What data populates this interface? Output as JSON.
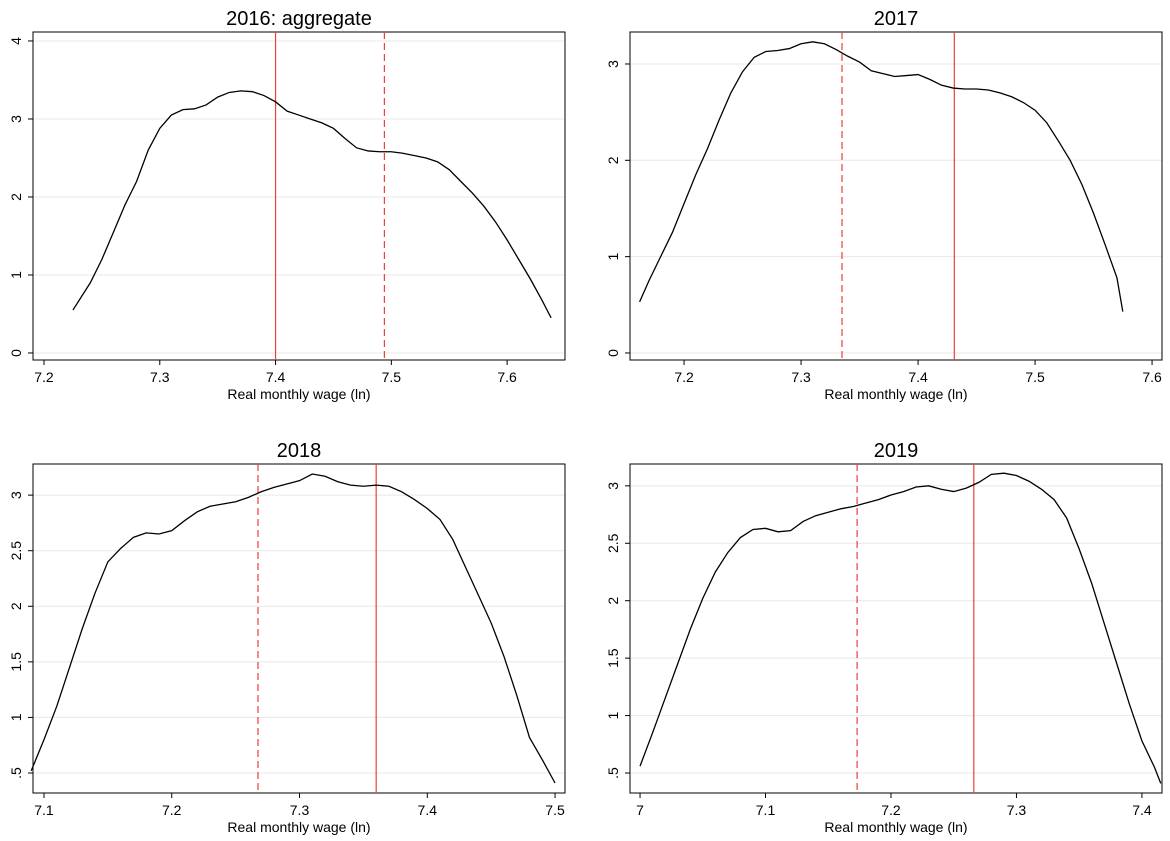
{
  "chart_data": [
    {
      "type": "line",
      "title": "2016: aggregate",
      "xlabel": "Real monthly wage (ln)",
      "color": "#000000",
      "grid": true,
      "vline_color": "#e8413c",
      "x": [
        7.225,
        7.24,
        7.25,
        7.26,
        7.27,
        7.28,
        7.29,
        7.3,
        7.31,
        7.32,
        7.33,
        7.34,
        7.35,
        7.36,
        7.37,
        7.38,
        7.39,
        7.4,
        7.41,
        7.42,
        7.43,
        7.44,
        7.45,
        7.46,
        7.47,
        7.48,
        7.49,
        7.5,
        7.51,
        7.52,
        7.53,
        7.54,
        7.55,
        7.56,
        7.57,
        7.58,
        7.59,
        7.6,
        7.61,
        7.62,
        7.63,
        7.638
      ],
      "values": [
        0.55,
        0.9,
        1.2,
        1.55,
        1.9,
        2.2,
        2.6,
        2.88,
        3.05,
        3.12,
        3.13,
        3.18,
        3.28,
        3.34,
        3.36,
        3.35,
        3.3,
        3.22,
        3.1,
        3.05,
        3.0,
        2.95,
        2.88,
        2.75,
        2.63,
        2.59,
        2.58,
        2.58,
        2.56,
        2.53,
        2.5,
        2.45,
        2.35,
        2.2,
        2.05,
        1.88,
        1.68,
        1.45,
        1.2,
        0.95,
        0.68,
        0.45
      ],
      "vlines": [
        {
          "x": 7.4,
          "style": "solid"
        },
        {
          "x": 7.494,
          "style": "dashed"
        }
      ],
      "xlim": [
        7.1905,
        7.65
      ],
      "ylim": [
        -0.09,
        4.115
      ],
      "xticks": [
        7.2,
        7.3,
        7.4,
        7.5,
        7.6
      ],
      "yticks": [
        0,
        1,
        2,
        3,
        4
      ]
    },
    {
      "type": "line",
      "title": "2017",
      "xlabel": "Real monthly wage (ln)",
      "color": "#000000",
      "grid": true,
      "vline_color": "#e8413c",
      "x": [
        7.162,
        7.17,
        7.18,
        7.19,
        7.2,
        7.21,
        7.22,
        7.23,
        7.24,
        7.25,
        7.26,
        7.27,
        7.28,
        7.29,
        7.3,
        7.31,
        7.32,
        7.33,
        7.34,
        7.35,
        7.36,
        7.37,
        7.38,
        7.39,
        7.4,
        7.41,
        7.42,
        7.43,
        7.44,
        7.45,
        7.46,
        7.47,
        7.48,
        7.49,
        7.5,
        7.51,
        7.52,
        7.53,
        7.54,
        7.55,
        7.56,
        7.57,
        7.575
      ],
      "values": [
        0.53,
        0.75,
        1.0,
        1.25,
        1.55,
        1.85,
        2.12,
        2.42,
        2.7,
        2.92,
        3.07,
        3.13,
        3.14,
        3.16,
        3.21,
        3.23,
        3.21,
        3.15,
        3.08,
        3.02,
        2.93,
        2.9,
        2.87,
        2.88,
        2.89,
        2.84,
        2.78,
        2.75,
        2.74,
        2.74,
        2.73,
        2.7,
        2.66,
        2.6,
        2.52,
        2.39,
        2.2,
        2.0,
        1.75,
        1.45,
        1.12,
        0.78,
        0.43
      ],
      "vlines": [
        {
          "x": 7.335,
          "style": "dashed"
        },
        {
          "x": 7.431,
          "style": "solid"
        }
      ],
      "xlim": [
        7.1538,
        7.6085
      ],
      "ylim": [
        -0.073,
        3.332
      ],
      "xticks": [
        7.2,
        7.3,
        7.4,
        7.5,
        7.6
      ],
      "yticks": [
        0,
        1,
        2,
        3
      ]
    },
    {
      "type": "line",
      "title": "2018",
      "xlabel": "Real monthly wage (ln)",
      "color": "#000000",
      "grid": true,
      "vline_color": "#e8413c",
      "x": [
        7.09,
        7.1,
        7.11,
        7.12,
        7.13,
        7.14,
        7.15,
        7.16,
        7.17,
        7.18,
        7.19,
        7.2,
        7.21,
        7.22,
        7.23,
        7.24,
        7.25,
        7.26,
        7.27,
        7.28,
        7.29,
        7.3,
        7.31,
        7.32,
        7.33,
        7.34,
        7.35,
        7.36,
        7.37,
        7.38,
        7.39,
        7.4,
        7.41,
        7.42,
        7.43,
        7.44,
        7.45,
        7.46,
        7.47,
        7.48,
        7.49,
        7.5
      ],
      "values": [
        0.52,
        0.8,
        1.1,
        1.45,
        1.8,
        2.12,
        2.4,
        2.52,
        2.62,
        2.66,
        2.65,
        2.68,
        2.77,
        2.85,
        2.9,
        2.92,
        2.94,
        2.98,
        3.03,
        3.07,
        3.1,
        3.13,
        3.19,
        3.17,
        3.12,
        3.09,
        3.08,
        3.09,
        3.08,
        3.03,
        2.96,
        2.88,
        2.78,
        2.6,
        2.35,
        2.1,
        1.85,
        1.55,
        1.2,
        0.82,
        0.62,
        0.41
      ],
      "vlines": [
        {
          "x": 7.2675,
          "style": "dashed"
        },
        {
          "x": 7.36,
          "style": "solid"
        }
      ],
      "xlim": [
        7.0914,
        7.5078
      ],
      "ylim": [
        0.32,
        3.28
      ],
      "xticks": [
        7.1,
        7.2,
        7.3,
        7.4,
        7.5
      ],
      "yticks": [
        {
          "value": 0.5,
          "label": ".5"
        },
        1,
        1.5,
        2,
        2.5,
        3
      ]
    },
    {
      "type": "line",
      "title": "2019",
      "xlabel": "Real monthly wage (ln)",
      "color": "#000000",
      "grid": true,
      "vline_color": "#e8413c",
      "x": [
        7.0,
        7.01,
        7.02,
        7.03,
        7.04,
        7.05,
        7.06,
        7.07,
        7.08,
        7.09,
        7.1,
        7.11,
        7.12,
        7.13,
        7.14,
        7.15,
        7.16,
        7.17,
        7.18,
        7.19,
        7.2,
        7.21,
        7.22,
        7.23,
        7.24,
        7.25,
        7.26,
        7.27,
        7.28,
        7.29,
        7.3,
        7.31,
        7.32,
        7.33,
        7.34,
        7.35,
        7.36,
        7.37,
        7.38,
        7.39,
        7.4,
        7.41,
        7.415
      ],
      "values": [
        0.56,
        0.85,
        1.15,
        1.45,
        1.75,
        2.02,
        2.25,
        2.42,
        2.55,
        2.62,
        2.63,
        2.6,
        2.61,
        2.69,
        2.74,
        2.77,
        2.8,
        2.82,
        2.85,
        2.88,
        2.92,
        2.95,
        2.99,
        3.0,
        2.97,
        2.95,
        2.98,
        3.03,
        3.1,
        3.11,
        3.09,
        3.04,
        2.97,
        2.88,
        2.72,
        2.45,
        2.15,
        1.8,
        1.45,
        1.1,
        0.78,
        0.55,
        0.41
      ],
      "vlines": [
        {
          "x": 7.173,
          "style": "dashed"
        },
        {
          "x": 7.266,
          "style": "solid"
        }
      ],
      "xlim": [
        6.992,
        7.416
      ],
      "ylim": [
        0.326,
        3.19
      ],
      "xticks": [
        7,
        7.1,
        7.2,
        7.3,
        7.4
      ],
      "yticks": [
        {
          "value": 0.5,
          "label": ".5"
        },
        1,
        1.5,
        2,
        2.5,
        3
      ]
    }
  ]
}
